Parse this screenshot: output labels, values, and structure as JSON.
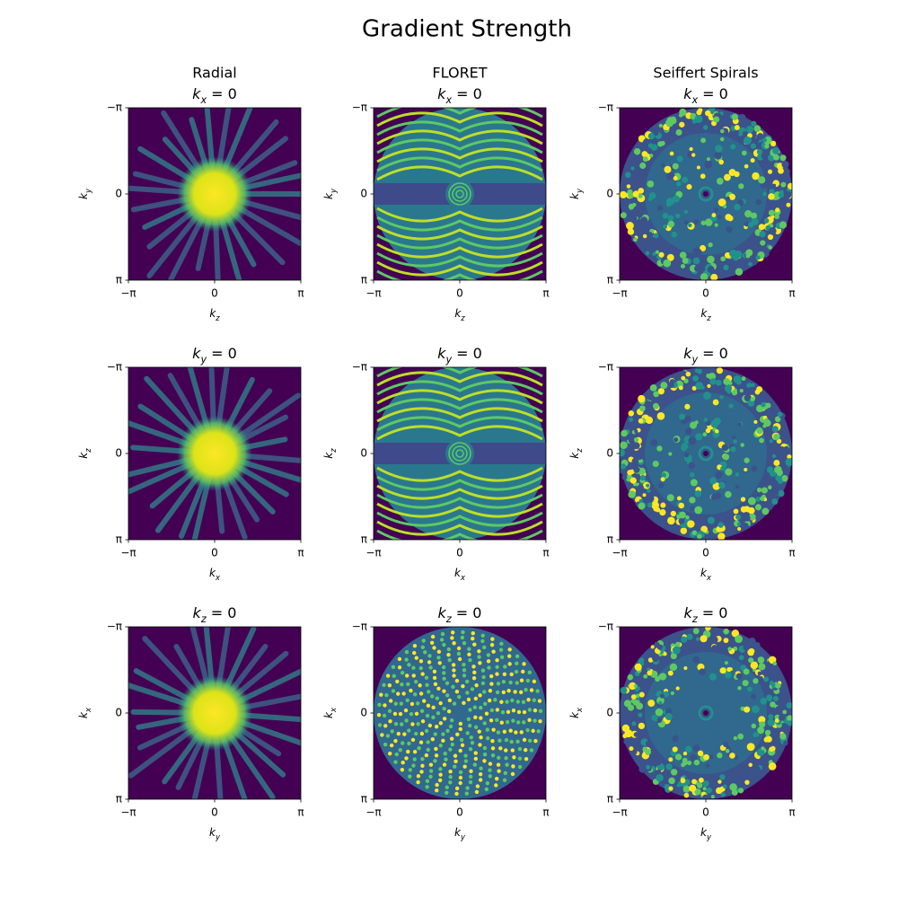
{
  "title": "Gradient Strength",
  "chart_data": [
    {
      "type": "image",
      "column_title": "Radial",
      "title": "kx = 0",
      "xlabel": "kz",
      "ylabel": "ky",
      "xlim": [
        -3.141592653589793,
        3.141592653589793
      ],
      "ylim": [
        3.141592653589793,
        -3.141592653589793
      ],
      "xticks": [
        {
          "value": -3.141592653589793,
          "label": "−π"
        },
        0,
        {
          "value": 3.141592653589793,
          "label": "π"
        }
      ],
      "yticks": [
        {
          "value": -3.141592653589793,
          "label": "−π"
        },
        0,
        {
          "value": 3.141592653589793,
          "label": "π"
        }
      ]
    },
    {
      "type": "image",
      "column_title": "FLORET",
      "title": "kx = 0",
      "xlabel": "kz",
      "ylabel": "ky",
      "xlim": [
        -3.141592653589793,
        3.141592653589793
      ],
      "ylim": [
        3.141592653589793,
        -3.141592653589793
      ],
      "xticks": [
        {
          "value": -3.141592653589793,
          "label": "−π"
        },
        0,
        {
          "value": 3.141592653589793,
          "label": "π"
        }
      ],
      "yticks": [
        {
          "value": -3.141592653589793,
          "label": "−π"
        },
        0,
        {
          "value": 3.141592653589793,
          "label": "π"
        }
      ]
    },
    {
      "type": "image",
      "column_title": "Seiffert Spirals",
      "title": "kx = 0",
      "xlabel": "kz",
      "ylabel": "ky",
      "xlim": [
        -3.141592653589793,
        3.141592653589793
      ],
      "ylim": [
        3.141592653589793,
        -3.141592653589793
      ],
      "xticks": [
        {
          "value": -3.141592653589793,
          "label": "−π"
        },
        0,
        {
          "value": 3.141592653589793,
          "label": "π"
        }
      ],
      "yticks": [
        {
          "value": -3.141592653589793,
          "label": "−π"
        },
        0,
        {
          "value": 3.141592653589793,
          "label": "π"
        }
      ]
    },
    {
      "type": "image",
      "title": "ky = 0",
      "xlabel": "kx",
      "ylabel": "kz",
      "xlim": [
        -3.141592653589793,
        3.141592653589793
      ],
      "ylim": [
        3.141592653589793,
        -3.141592653589793
      ],
      "xticks": [
        {
          "value": -3.141592653589793,
          "label": "−π"
        },
        0,
        {
          "value": 3.141592653589793,
          "label": "π"
        }
      ],
      "yticks": [
        {
          "value": -3.141592653589793,
          "label": "−π"
        },
        0,
        {
          "value": 3.141592653589793,
          "label": "π"
        }
      ]
    },
    {
      "type": "image",
      "title": "ky = 0",
      "xlabel": "kx",
      "ylabel": "kz",
      "xlim": [
        -3.141592653589793,
        3.141592653589793
      ],
      "ylim": [
        3.141592653589793,
        -3.141592653589793
      ],
      "xticks": [
        {
          "value": -3.141592653589793,
          "label": "−π"
        },
        0,
        {
          "value": 3.141592653589793,
          "label": "π"
        }
      ],
      "yticks": [
        {
          "value": -3.141592653589793,
          "label": "−π"
        },
        0,
        {
          "value": 3.141592653589793,
          "label": "π"
        }
      ]
    },
    {
      "type": "image",
      "title": "ky = 0",
      "xlabel": "kx",
      "ylabel": "kz",
      "xlim": [
        -3.141592653589793,
        3.141592653589793
      ],
      "ylim": [
        3.141592653589793,
        -3.141592653589793
      ],
      "xticks": [
        {
          "value": -3.141592653589793,
          "label": "−π"
        },
        0,
        {
          "value": 3.141592653589793,
          "label": "π"
        }
      ],
      "yticks": [
        {
          "value": -3.141592653589793,
          "label": "−π"
        },
        0,
        {
          "value": 3.141592653589793,
          "label": "π"
        }
      ]
    },
    {
      "type": "image",
      "title": "kz = 0",
      "xlabel": "ky",
      "ylabel": "kx",
      "xlim": [
        -3.141592653589793,
        3.141592653589793
      ],
      "ylim": [
        3.141592653589793,
        -3.141592653589793
      ],
      "xticks": [
        {
          "value": -3.141592653589793,
          "label": "−π"
        },
        0,
        {
          "value": 3.141592653589793,
          "label": "π"
        }
      ],
      "yticks": [
        {
          "value": -3.141592653589793,
          "label": "−π"
        },
        0,
        {
          "value": 3.141592653589793,
          "label": "π"
        }
      ]
    },
    {
      "type": "image",
      "title": "kz = 0",
      "xlabel": "ky",
      "ylabel": "kx",
      "xlim": [
        -3.141592653589793,
        3.141592653589793
      ],
      "ylim": [
        3.141592653589793,
        -3.141592653589793
      ],
      "xticks": [
        {
          "value": -3.141592653589793,
          "label": "−π"
        },
        0,
        {
          "value": 3.141592653589793,
          "label": "π"
        }
      ],
      "yticks": [
        {
          "value": -3.141592653589793,
          "label": "−π"
        },
        0,
        {
          "value": 3.141592653589793,
          "label": "π"
        }
      ]
    },
    {
      "type": "image",
      "title": "kz = 0",
      "xlabel": "ky",
      "ylabel": "kx",
      "xlim": [
        -3.141592653589793,
        3.141592653589793
      ],
      "ylim": [
        3.141592653589793,
        -3.141592653589793
      ],
      "xticks": [
        {
          "value": -3.141592653589793,
          "label": "−π"
        },
        0,
        {
          "value": 3.141592653589793,
          "label": "π"
        }
      ],
      "yticks": [
        {
          "value": -3.141592653589793,
          "label": "−π"
        },
        0,
        {
          "value": 3.141592653589793,
          "label": "π"
        }
      ]
    }
  ]
}
